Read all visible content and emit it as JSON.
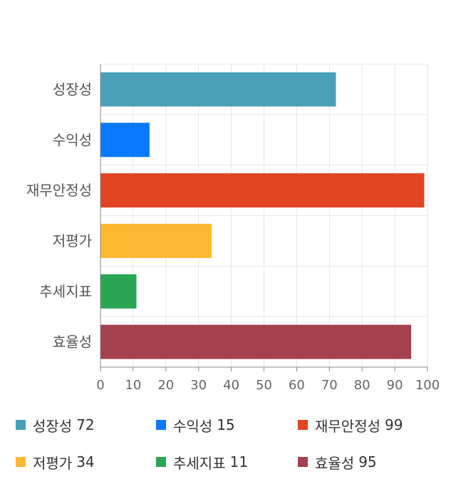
{
  "chart_data": {
    "type": "bar",
    "orientation": "horizontal",
    "categories": [
      "성장성",
      "수익성",
      "재무안정성",
      "저평가",
      "추세지표",
      "효율성"
    ],
    "values": [
      72,
      15,
      99,
      34,
      11,
      95
    ],
    "colors": [
      "#4aa0b8",
      "#0a78ff",
      "#e14422",
      "#fdb832",
      "#2aa553",
      "#a5404f"
    ],
    "xlim": [
      0,
      100
    ],
    "xticks": [
      0,
      10,
      20,
      30,
      40,
      50,
      60,
      70,
      80,
      90,
      100
    ],
    "grid": true,
    "legend_position": "bottom"
  },
  "legend": [
    {
      "label": "성장성",
      "value": "72",
      "color": "#4aa0b8"
    },
    {
      "label": "수익성",
      "value": "15",
      "color": "#0a78ff"
    },
    {
      "label": "재무안정성",
      "value": "99",
      "color": "#e14422"
    },
    {
      "label": "저평가",
      "value": "34",
      "color": "#fdb832"
    },
    {
      "label": "추세지표",
      "value": "11",
      "color": "#2aa553"
    },
    {
      "label": "효율성",
      "value": "95",
      "color": "#a5404f"
    }
  ]
}
